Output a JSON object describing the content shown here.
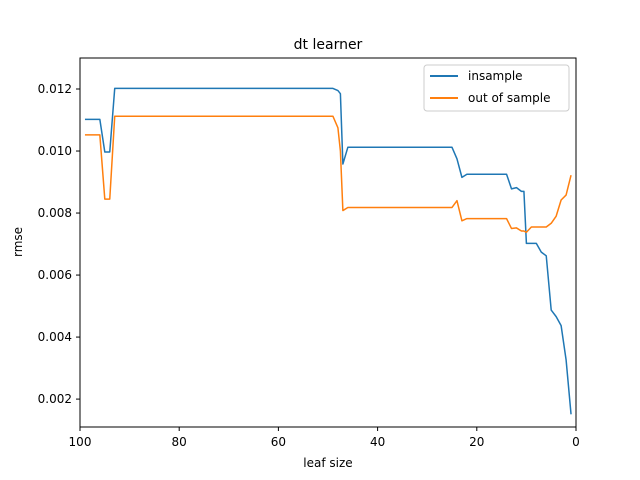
{
  "chart_data": {
    "type": "line",
    "title": "dt learner",
    "xlabel": "leaf size",
    "ylabel": "rmse",
    "xlim": [
      100,
      0
    ],
    "ylim": [
      0.0011,
      0.013
    ],
    "x_ticks": [
      100,
      80,
      60,
      40,
      20,
      0
    ],
    "x_tick_labels": [
      "100",
      "80",
      "60",
      "40",
      "20",
      "0"
    ],
    "y_ticks": [
      0.002,
      0.004,
      0.006,
      0.008,
      0.01,
      0.012
    ],
    "y_tick_labels": [
      "0.002",
      "0.004",
      "0.006",
      "0.008",
      "0.010",
      "0.012"
    ],
    "grid": false,
    "legend_position": "upper right",
    "series": [
      {
        "name": "insample",
        "color": "#1f77b4",
        "x": [
          99,
          97,
          96,
          95,
          94,
          93,
          92,
          90,
          85,
          80,
          70,
          60,
          55,
          50,
          49,
          48,
          47.5,
          47,
          46,
          45,
          40,
          35,
          30,
          26,
          25,
          24,
          23,
          22,
          21,
          20,
          18,
          16,
          15,
          14,
          13,
          12,
          11,
          10.5,
          10,
          9,
          8,
          7,
          6,
          5,
          4,
          3,
          2,
          1
        ],
        "y": [
          0.01102,
          0.01102,
          0.01102,
          0.00997,
          0.00997,
          0.01202,
          0.01202,
          0.01202,
          0.01202,
          0.01202,
          0.01202,
          0.01202,
          0.01202,
          0.01202,
          0.01202,
          0.01195,
          0.01185,
          0.00958,
          0.01012,
          0.01012,
          0.01012,
          0.01012,
          0.01012,
          0.01012,
          0.01012,
          0.00975,
          0.00915,
          0.00925,
          0.00925,
          0.00925,
          0.00925,
          0.00925,
          0.00925,
          0.00925,
          0.00878,
          0.00882,
          0.0087,
          0.0087,
          0.00702,
          0.00702,
          0.00702,
          0.00674,
          0.00662,
          0.00487,
          0.00466,
          0.00437,
          0.00327,
          0.00151
        ]
      },
      {
        "name": "out of sample",
        "color": "#ff7f0e",
        "x": [
          99,
          97,
          96,
          95,
          94,
          93,
          92,
          90,
          85,
          80,
          70,
          60,
          55,
          50,
          49,
          48,
          47.5,
          47,
          46,
          45,
          40,
          35,
          30,
          26,
          25,
          24,
          23,
          22,
          21,
          20,
          18,
          16,
          15,
          14,
          13,
          12,
          11,
          10.5,
          10,
          9,
          8,
          7,
          6,
          5,
          4,
          3,
          2,
          1
        ],
        "y": [
          0.01052,
          0.01052,
          0.01052,
          0.00845,
          0.00845,
          0.01112,
          0.01112,
          0.01112,
          0.01112,
          0.01112,
          0.01112,
          0.01112,
          0.01112,
          0.01112,
          0.01112,
          0.01075,
          0.01,
          0.00808,
          0.00818,
          0.00818,
          0.00818,
          0.00818,
          0.00818,
          0.00818,
          0.00818,
          0.0084,
          0.00775,
          0.00782,
          0.00782,
          0.00782,
          0.00782,
          0.00782,
          0.00782,
          0.00782,
          0.0075,
          0.00752,
          0.00742,
          0.00742,
          0.00738,
          0.00755,
          0.00755,
          0.00755,
          0.00755,
          0.00767,
          0.0079,
          0.00842,
          0.00858,
          0.00922
        ]
      }
    ]
  }
}
